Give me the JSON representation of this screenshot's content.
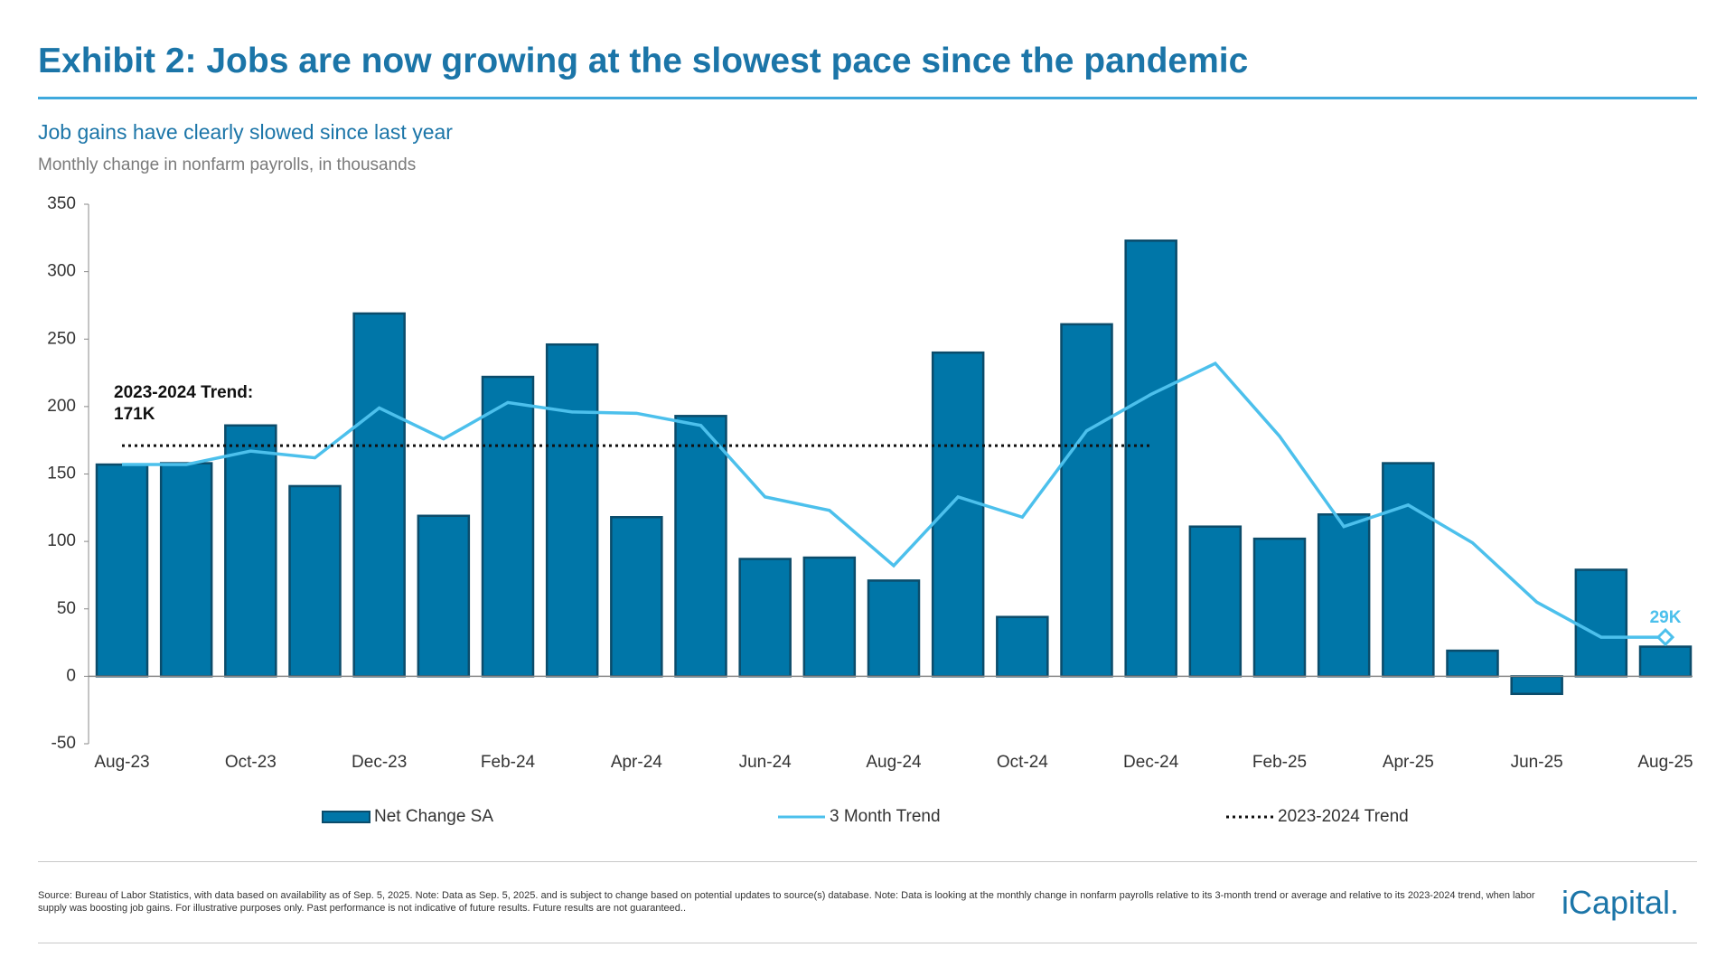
{
  "header": {
    "title": "Exhibit 2: Jobs are now growing at the slowest pace since the pandemic"
  },
  "chart_data": {
    "type": "bar",
    "title": "Job gains have clearly slowed since last year",
    "subtitle": "Monthly change in nonfarm payrolls, in thousands",
    "categories": [
      "Aug-23",
      null,
      "Oct-23",
      null,
      "Dec-23",
      null,
      "Feb-24",
      null,
      "Apr-24",
      null,
      "Jun-24",
      null,
      "Aug-24",
      null,
      "Oct-24",
      null,
      "Dec-24",
      null,
      "Feb-25",
      null,
      "Apr-25",
      null,
      "Jun-25",
      null,
      "Aug-25"
    ],
    "series": [
      {
        "name": "Net Change SA",
        "type": "bar",
        "color": "#0076a8",
        "values": [
          157,
          158,
          186,
          141,
          269,
          119,
          222,
          246,
          118,
          193,
          87,
          88,
          71,
          240,
          44,
          261,
          323,
          111,
          102,
          120,
          158,
          19,
          -13,
          79,
          22
        ]
      },
      {
        "name": "3 Month Trend",
        "type": "line",
        "color": "#4cc0ec",
        "values": [
          157,
          157,
          167,
          162,
          199,
          176,
          203,
          196,
          195,
          186,
          133,
          123,
          82,
          133,
          118,
          182,
          209,
          232,
          178,
          111,
          127,
          99,
          55,
          29,
          29
        ],
        "value_labels": [
          null,
          null,
          null,
          null,
          null,
          null,
          null,
          null,
          null,
          null,
          null,
          null,
          null,
          null,
          null,
          null,
          null,
          null,
          null,
          null,
          null,
          null,
          null,
          null,
          "29K"
        ]
      },
      {
        "name": "2023-2024 Trend",
        "type": "dotted",
        "color": "#111111",
        "values": [
          171,
          171,
          171,
          171,
          171,
          171,
          171,
          171,
          171,
          171,
          171,
          171,
          171,
          171,
          171,
          171,
          171,
          null,
          null,
          null,
          null,
          null,
          null,
          null,
          null
        ]
      }
    ],
    "annotation": [
      "2023-2024 Trend:",
      "171K"
    ],
    "ylim": [
      -50,
      350
    ],
    "yticks": [
      -50,
      0,
      50,
      100,
      150,
      200,
      250,
      300,
      350
    ]
  },
  "footer": {
    "source": "Source: Bureau of Labor Statistics, with data based on availability as of Sep. 5, 2025. Note: Data as Sep. 5, 2025. and is subject to change based on potential updates to source(s) database. Note: Data is looking at the monthly change in nonfarm payrolls relative to its 3-month trend or average and relative to its 2023-2024 trend, when labor supply was boosting job gains. For illustrative purposes only. Past performance is not indicative of future results. Future results are not guaranteed..",
    "logo": "iCapital."
  }
}
